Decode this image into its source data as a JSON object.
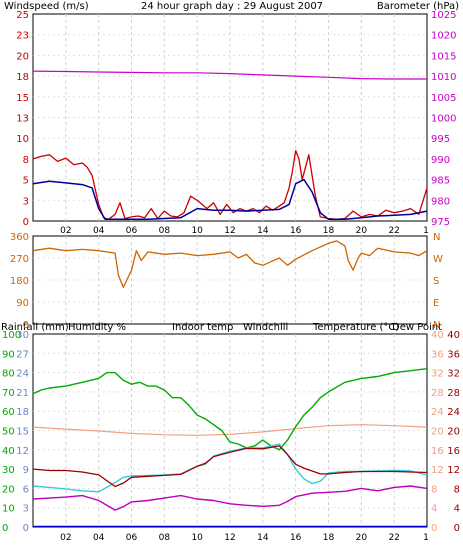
{
  "title": "24 hour graph day : 29 August 2007",
  "colors": {
    "windspeed": "#cc0000",
    "windavg": "#000099",
    "barometer": "#cc00cc",
    "winddir": "#cc6600",
    "humidity": "#00aa00",
    "indoor": "#f0a080",
    "windchill": "#33ccdd",
    "temperature": "#990000",
    "dewpoint": "#bb00bb",
    "rainfall": "#0000cc",
    "grid": "#d0d0d0",
    "tick": "#000000"
  },
  "chart_data": [
    {
      "type": "line",
      "name": "wind-baro",
      "title": "24 hour graph day : 29 August 2007",
      "ylabel_left": "Windspeed (m/s)",
      "ylabel_right": "Barometer (hPa)",
      "x_ticks": [
        "02",
        "04",
        "06",
        "08",
        "10",
        "12",
        "14",
        "16",
        "18",
        "20",
        "22",
        "1"
      ],
      "left_ticks": [
        "0",
        "3",
        "5",
        "8",
        "10",
        "13",
        "15",
        "18",
        "20",
        "23",
        "25"
      ],
      "right_ticks": [
        "975",
        "980",
        "985",
        "990",
        "995",
        "1000",
        "1005",
        "1010",
        "1015",
        "1020",
        "1025"
      ],
      "ylim_left": [
        0,
        25
      ],
      "ylim_right": [
        975,
        1025
      ],
      "series": [
        {
          "name": "Windspeed (m/s)",
          "x": [
            0,
            0.5,
            1,
            1.5,
            2,
            2.5,
            3,
            3.3,
            3.6,
            4,
            4.3,
            4.6,
            5,
            5.3,
            5.6,
            6,
            6.4,
            6.8,
            7.2,
            7.6,
            8,
            8.4,
            8.8,
            9.2,
            9.6,
            10,
            10.3,
            10.6,
            11,
            11.4,
            11.8,
            12.2,
            12.6,
            13,
            13.4,
            13.8,
            14.2,
            14.6,
            15,
            15.3,
            15.6,
            15.8,
            16,
            16.2,
            16.4,
            16.6,
            16.8,
            17,
            17.2,
            17.5,
            18,
            18.5,
            19,
            19.5,
            20,
            20.5,
            21,
            21.5,
            22,
            22.5,
            23,
            23.5,
            24
          ],
          "values": [
            7.5,
            7.8,
            8.0,
            7.2,
            7.6,
            6.8,
            7.0,
            6.5,
            5.5,
            2.0,
            0.4,
            0.2,
            0.8,
            2.2,
            0.3,
            0.5,
            0.6,
            0.4,
            1.5,
            0.3,
            1.2,
            0.6,
            0.5,
            1.0,
            3.0,
            2.5,
            2.0,
            1.5,
            2.2,
            0.8,
            2.0,
            1.0,
            1.5,
            1.2,
            1.5,
            1.0,
            1.8,
            1.3,
            1.8,
            2.2,
            4.0,
            6.0,
            8.5,
            7.5,
            5.0,
            6.5,
            8.0,
            5.5,
            3.0,
            0.5,
            0.3,
            0.2,
            0.3,
            1.2,
            0.5,
            0.8,
            0.6,
            1.3,
            1.0,
            1.2,
            1.5,
            0.8,
            4.0
          ]
        },
        {
          "name": "Average windspeed (m/s)",
          "x": [
            0,
            1,
            2,
            3,
            3.6,
            4,
            4.4,
            5,
            6,
            7,
            8,
            9,
            10,
            11,
            12,
            13,
            14,
            15,
            15.6,
            16,
            16.5,
            17,
            17.5,
            18,
            19,
            20,
            21,
            22,
            23,
            24
          ],
          "values": [
            4.5,
            4.8,
            4.6,
            4.4,
            4.0,
            1.5,
            0.2,
            0.2,
            0.2,
            0.2,
            0.3,
            0.4,
            1.5,
            1.3,
            1.3,
            1.2,
            1.3,
            1.4,
            2.0,
            4.5,
            5.0,
            3.5,
            1.0,
            0.2,
            0.2,
            0.4,
            0.6,
            0.7,
            0.8,
            1.2
          ]
        },
        {
          "name": "Barometer (hPa)",
          "axis": "right",
          "x": [
            0,
            2,
            4,
            6,
            8,
            10,
            12,
            14,
            16,
            18,
            20,
            22,
            24
          ],
          "values": [
            1011.2,
            1011.1,
            1011.0,
            1010.9,
            1010.8,
            1010.8,
            1010.6,
            1010.3,
            1010.0,
            1009.7,
            1009.4,
            1009.3,
            1009.3
          ]
        }
      ]
    },
    {
      "type": "line",
      "name": "wind-direction",
      "left_ticks": [
        "0",
        "90",
        "180",
        "270",
        "360"
      ],
      "right_ticks": [
        "N",
        "E",
        "S",
        "W",
        "N"
      ],
      "ylim": [
        0,
        360
      ],
      "series": [
        {
          "name": "Wind direction",
          "x": [
            0,
            1,
            2,
            3,
            4,
            4.5,
            5,
            5.2,
            5.5,
            6,
            6.3,
            6.6,
            7,
            8,
            9,
            10,
            11,
            12,
            12.5,
            13,
            13.5,
            14,
            14.5,
            15,
            15.5,
            16,
            17,
            18,
            18.5,
            19,
            19.2,
            19.5,
            19.8,
            20,
            20.5,
            21,
            22,
            23,
            23.5,
            24
          ],
          "values": [
            300,
            310,
            300,
            305,
            300,
            295,
            290,
            200,
            150,
            220,
            300,
            260,
            295,
            285,
            290,
            280,
            285,
            295,
            270,
            285,
            250,
            240,
            255,
            270,
            240,
            265,
            300,
            330,
            340,
            320,
            260,
            220,
            270,
            290,
            280,
            310,
            295,
            290,
            280,
            300
          ]
        }
      ]
    },
    {
      "type": "line",
      "name": "humidity-temperature",
      "legend": [
        "Rainfall (mm)",
        "Humidity %",
        "Indoor temp",
        "Windchill",
        "Temperature (°C)",
        "Dew Point"
      ],
      "axis_ticks": {
        "humidity": [
          "0",
          "10",
          "20",
          "30",
          "40",
          "50",
          "60",
          "70",
          "80",
          "90",
          "100"
        ],
        "rainfall": [
          "0",
          "3",
          "6",
          "9",
          "12",
          "15",
          "18",
          "21",
          "24",
          "27",
          "30"
        ],
        "indoor": [
          "0",
          "4",
          "8",
          "12",
          "16",
          "20",
          "24",
          "28",
          "32",
          "36",
          "40"
        ],
        "temperature": [
          "0",
          "4",
          "8",
          "12",
          "16",
          "20",
          "24",
          "28",
          "32",
          "36",
          "40"
        ]
      },
      "x_ticks": [
        "02",
        "04",
        "06",
        "08",
        "10",
        "12",
        "14",
        "16",
        "18",
        "20",
        "22",
        "1"
      ],
      "ylim_humidity": [
        0,
        100
      ],
      "ylim_temperature": [
        0,
        40
      ],
      "series": [
        {
          "name": "Humidity %",
          "x": [
            0,
            0.5,
            1,
            2,
            3,
            4,
            4.5,
            5,
            5.5,
            6,
            6.5,
            7,
            7.5,
            8,
            8.5,
            9,
            9.5,
            10,
            10.5,
            11,
            11.5,
            12,
            12.5,
            13,
            13.5,
            14,
            14.5,
            15,
            15.5,
            16,
            16.5,
            17,
            17.5,
            18,
            19,
            20,
            21,
            22,
            23,
            24
          ],
          "values": [
            69,
            71,
            72,
            73,
            75,
            77,
            80,
            80,
            76,
            74,
            75,
            73,
            73,
            71,
            67,
            67,
            63,
            58,
            56,
            53,
            50,
            44,
            43,
            41,
            42,
            45,
            42,
            40,
            45,
            52,
            58,
            62,
            67,
            70,
            75,
            77,
            78,
            80,
            81,
            82
          ]
        },
        {
          "name": "Indoor temp",
          "x": [
            0,
            2,
            4,
            6,
            8,
            10,
            12,
            14,
            16,
            18,
            20,
            22,
            24
          ],
          "values": [
            20.7,
            20.3,
            19.9,
            19.4,
            19.1,
            19.0,
            19.2,
            19.7,
            20.4,
            21.0,
            21.2,
            21.0,
            20.7
          ]
        },
        {
          "name": "Windchill",
          "x": [
            0,
            1,
            2,
            3,
            4,
            5,
            5.5,
            6,
            7,
            8,
            9,
            10,
            10.5,
            11,
            12,
            13,
            14,
            15,
            15.5,
            16,
            16.5,
            17,
            17.5,
            18,
            19,
            20,
            21,
            22,
            23,
            24
          ],
          "values": [
            8.5,
            8.2,
            7.9,
            7.5,
            7.3,
            9.2,
            10.3,
            10.6,
            10.7,
            10.8,
            11.0,
            12.6,
            13.0,
            14.7,
            15.7,
            16.4,
            16.4,
            17.2,
            15.0,
            12.0,
            10.0,
            9.0,
            9.5,
            11.2,
            11.5,
            11.5,
            11.6,
            11.7,
            11.6,
            10.8
          ]
        },
        {
          "name": "Temperature (°C)",
          "x": [
            0,
            1,
            2,
            3,
            4,
            5,
            5.5,
            6,
            7,
            8,
            9,
            10,
            10.5,
            11,
            12,
            13,
            14,
            15,
            15.5,
            16,
            16.5,
            17,
            17.5,
            18,
            19,
            20,
            21,
            22,
            23,
            24
          ],
          "values": [
            12.0,
            11.7,
            11.7,
            11.4,
            10.8,
            8.4,
            9.1,
            10.3,
            10.5,
            10.7,
            10.9,
            12.6,
            13.2,
            14.6,
            15.5,
            16.3,
            16.2,
            16.8,
            15.0,
            13.0,
            12.2,
            11.6,
            11.0,
            11.0,
            11.3,
            11.5,
            11.5,
            11.5,
            11.4,
            11.3
          ]
        },
        {
          "name": "Dew Point",
          "x": [
            0,
            1,
            2,
            3,
            4,
            5,
            5.5,
            6,
            7,
            8,
            9,
            10,
            11,
            12,
            13,
            14,
            15,
            15.5,
            16,
            17,
            18,
            19,
            20,
            21,
            22,
            23,
            24
          ],
          "values": [
            5.8,
            6.0,
            6.2,
            6.5,
            5.5,
            3.5,
            4.2,
            5.2,
            5.5,
            6.0,
            6.5,
            5.8,
            5.5,
            4.8,
            4.5,
            4.3,
            4.5,
            5.3,
            6.3,
            7.0,
            7.2,
            7.4,
            8.0,
            7.5,
            8.2,
            8.5,
            8.0
          ]
        },
        {
          "name": "Rainfall (mm)",
          "x": [
            0,
            24
          ],
          "values": [
            0.1,
            0.1
          ]
        }
      ]
    }
  ]
}
